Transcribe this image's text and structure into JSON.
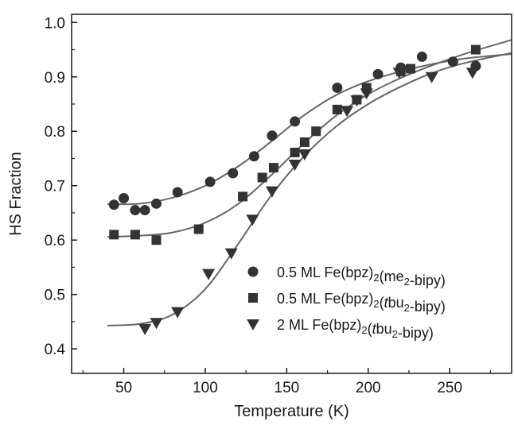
{
  "chart_data": {
    "type": "scatter",
    "title": "",
    "xlabel": "Temperature (K)",
    "ylabel": "HS Fraction",
    "xlim": [
      18,
      288
    ],
    "ylim": [
      0.355,
      1.015
    ],
    "xticks": [
      50,
      100,
      150,
      200,
      250
    ],
    "xtick_labels": [
      "50",
      "100",
      "150",
      "200",
      "250"
    ],
    "yticks": [
      0.4,
      0.5,
      0.6,
      0.7,
      0.8,
      0.9,
      1.0
    ],
    "ytick_labels": [
      "0.4",
      "0.5",
      "0.6",
      "0.7",
      "0.8",
      "0.9",
      "1.0"
    ],
    "grid": false,
    "legend_position": "lower-right",
    "marker_color": "#333333",
    "fit_color": "#666666",
    "series": [
      {
        "label_parts": [
          [
            "0.5 ML Fe(bpz)",
            ""
          ],
          [
            "2",
            "sub"
          ],
          [
            "(me",
            ""
          ],
          [
            "2",
            "sub"
          ],
          [
            "-bipy)",
            ""
          ]
        ],
        "marker": "circle",
        "x": [
          44,
          50,
          57,
          63,
          70,
          83,
          103,
          117,
          130,
          141,
          155,
          181,
          206,
          220,
          233,
          252,
          266
        ],
        "y": [
          0.665,
          0.677,
          0.655,
          0.655,
          0.667,
          0.688,
          0.707,
          0.723,
          0.754,
          0.792,
          0.818,
          0.88,
          0.905,
          0.917,
          0.937,
          0.928,
          0.92
        ],
        "fit": {
          "x": [
            40,
            60,
            80,
            100,
            120,
            140,
            160,
            180,
            200,
            220,
            240,
            260,
            288
          ],
          "y": [
            0.666,
            0.667,
            0.678,
            0.7,
            0.735,
            0.78,
            0.828,
            0.866,
            0.892,
            0.91,
            0.924,
            0.934,
            0.942
          ]
        }
      },
      {
        "label_parts": [
          [
            "0.5 ML Fe(bpz)",
            ""
          ],
          [
            "2",
            "sub"
          ],
          [
            "(",
            ""
          ],
          [
            "t",
            "italic"
          ],
          [
            "bu",
            ""
          ],
          [
            "2",
            "sub"
          ],
          [
            "-bipy)",
            ""
          ]
        ],
        "marker": "square",
        "x": [
          44,
          57,
          70,
          96,
          123,
          135,
          142,
          155,
          161,
          168,
          181,
          193,
          199,
          220,
          226,
          266
        ],
        "y": [
          0.61,
          0.61,
          0.6,
          0.62,
          0.68,
          0.715,
          0.733,
          0.761,
          0.78,
          0.8,
          0.84,
          0.858,
          0.88,
          0.91,
          0.915,
          0.95
        ],
        "fit": {
          "x": [
            40,
            60,
            80,
            100,
            120,
            140,
            160,
            180,
            200,
            220,
            240,
            260,
            288
          ],
          "y": [
            0.606,
            0.608,
            0.614,
            0.632,
            0.666,
            0.718,
            0.776,
            0.828,
            0.868,
            0.898,
            0.922,
            0.943,
            0.968
          ]
        }
      },
      {
        "label_parts": [
          [
            "2 ML Fe(bpz)",
            ""
          ],
          [
            "2",
            "sub"
          ],
          [
            "(",
            ""
          ],
          [
            "t",
            "italic"
          ],
          [
            "bu",
            ""
          ],
          [
            "2",
            "sub"
          ],
          [
            "-bipy)",
            ""
          ]
        ],
        "marker": "triangle-down",
        "x": [
          63,
          70,
          83,
          102,
          116,
          129,
          141,
          155,
          161,
          187,
          193,
          199,
          219,
          239,
          264
        ],
        "y": [
          0.437,
          0.448,
          0.468,
          0.538,
          0.576,
          0.638,
          0.69,
          0.739,
          0.758,
          0.838,
          0.857,
          0.87,
          0.908,
          0.9,
          0.908
        ],
        "fit": {
          "x": [
            40,
            60,
            80,
            100,
            120,
            140,
            160,
            180,
            200,
            220,
            240,
            260,
            288
          ],
          "y": [
            0.443,
            0.446,
            0.463,
            0.51,
            0.592,
            0.68,
            0.752,
            0.808,
            0.85,
            0.882,
            0.908,
            0.926,
            0.944
          ]
        }
      }
    ]
  }
}
